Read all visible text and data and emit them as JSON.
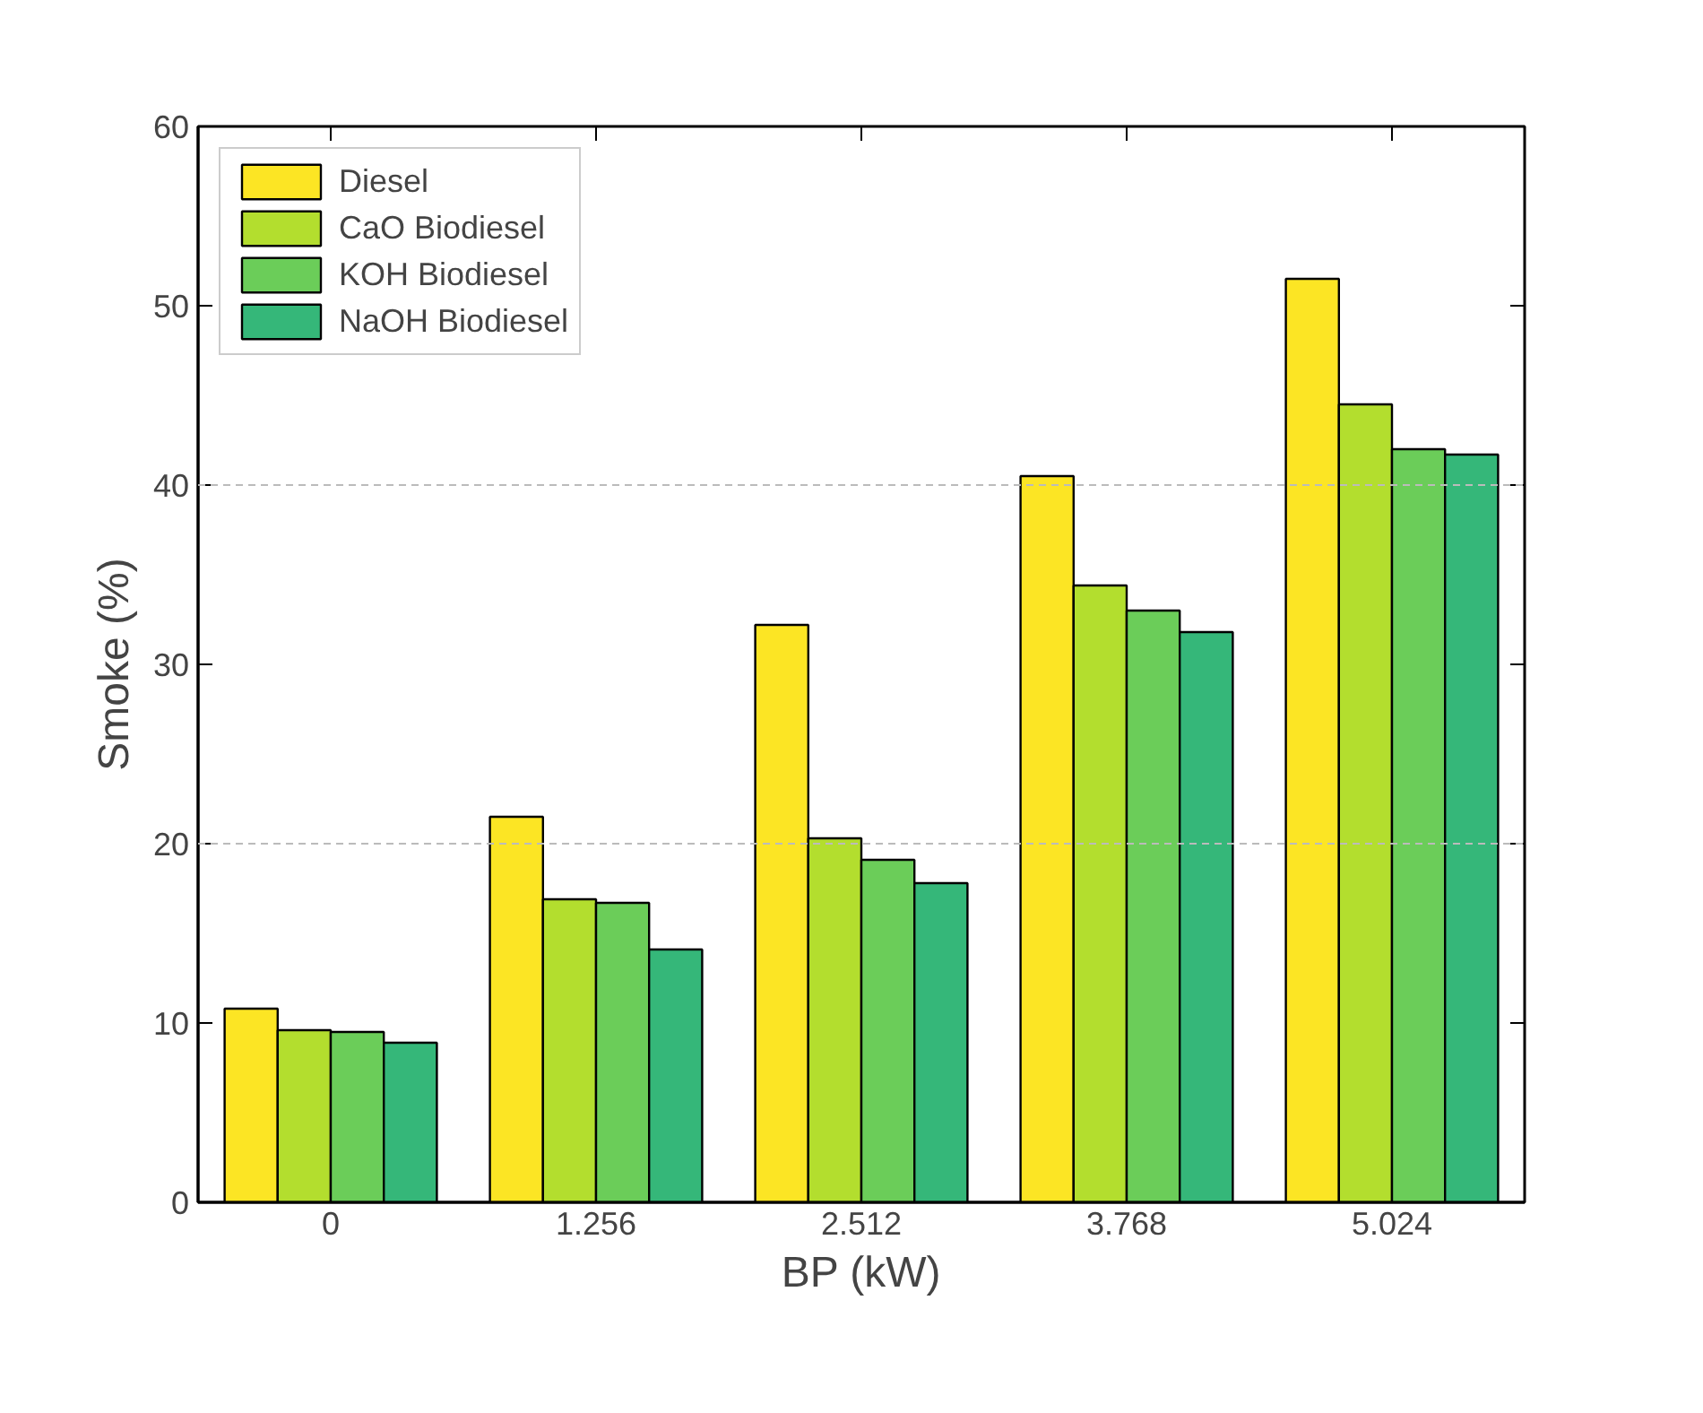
{
  "chart_data": {
    "type": "bar",
    "xlabel": "BP (kW)",
    "ylabel": "Smoke (%)",
    "categories": [
      "0",
      "1.256",
      "2.512",
      "3.768",
      "5.024"
    ],
    "series": [
      {
        "name": "Diesel",
        "color": "#fce524",
        "values": [
          10.8,
          21.5,
          32.2,
          40.5,
          51.5
        ]
      },
      {
        "name": "CaO Biodiesel",
        "color": "#b3de2e",
        "values": [
          9.6,
          16.9,
          20.3,
          34.4,
          44.5
        ]
      },
      {
        "name": "KOH Biodiesel",
        "color": "#6bcd59",
        "values": [
          9.5,
          16.7,
          19.1,
          33.0,
          42.0
        ]
      },
      {
        "name": "NaOH Biodiesel",
        "color": "#35b779",
        "values": [
          8.9,
          14.1,
          17.8,
          31.8,
          41.7
        ]
      }
    ],
    "ylim": [
      0,
      60
    ],
    "yticks": [
      0,
      10,
      20,
      30,
      40,
      50,
      60
    ],
    "ref_lines": [
      {
        "axis": "y",
        "value": 20,
        "color": "#bbbbbb",
        "line_style": "dashed"
      },
      {
        "axis": "y",
        "value": 40,
        "color": "#bbbbbb",
        "line_style": "dashed"
      }
    ],
    "legend": "top left"
  }
}
